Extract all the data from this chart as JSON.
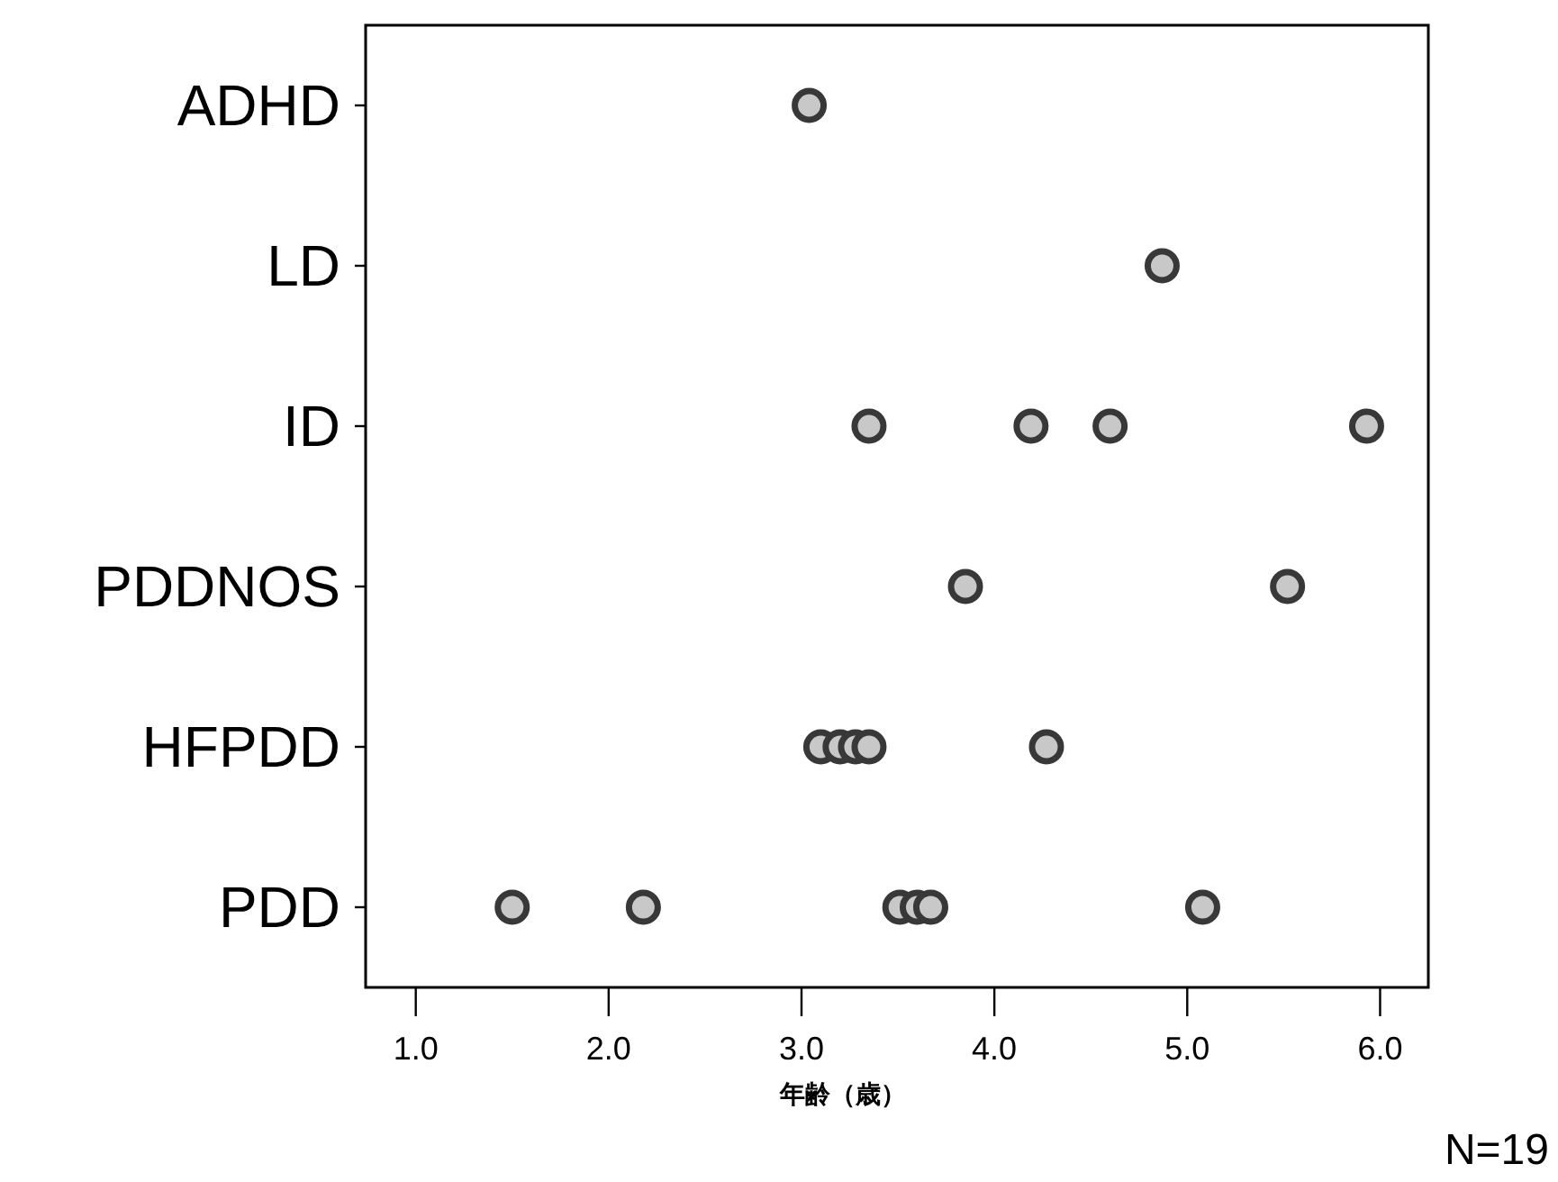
{
  "chart_data": {
    "type": "scatter",
    "orientation": "horizontal",
    "categories": [
      "ADHD",
      "LD",
      "ID",
      "PDDNOS",
      "HFPDD",
      "PDD"
    ],
    "xlabel": "年齢（歳）",
    "xlim": [
      0.74,
      6.25
    ],
    "xticks": [
      {
        "value": 1,
        "label": "1.0"
      },
      {
        "value": 2,
        "label": "2.0"
      },
      {
        "value": 3,
        "label": "3.0"
      },
      {
        "value": 4,
        "label": "4.0"
      },
      {
        "value": 5,
        "label": "5.0"
      },
      {
        "value": 6,
        "label": "6.0"
      }
    ],
    "marker": "circle",
    "series": [
      {
        "color": "#c8c8c8",
        "x": [
          "ADHD",
          "LD",
          "ID",
          "ID",
          "ID",
          "ID",
          "PDDNOS",
          "PDDNOS",
          "HFPDD",
          "HFPDD",
          "HFPDD",
          "HFPDD",
          "HFPDD",
          "PDD",
          "PDD",
          "PDD",
          "PDD",
          "PDD",
          "PDD"
        ],
        "values": [
          3.04,
          4.87,
          3.35,
          4.19,
          4.6,
          5.93,
          3.85,
          5.52,
          3.1,
          3.2,
          3.28,
          3.35,
          4.27,
          1.5,
          2.18,
          3.51,
          3.6,
          3.67,
          5.08
        ]
      }
    ],
    "annotations": [
      "N=19"
    ]
  }
}
